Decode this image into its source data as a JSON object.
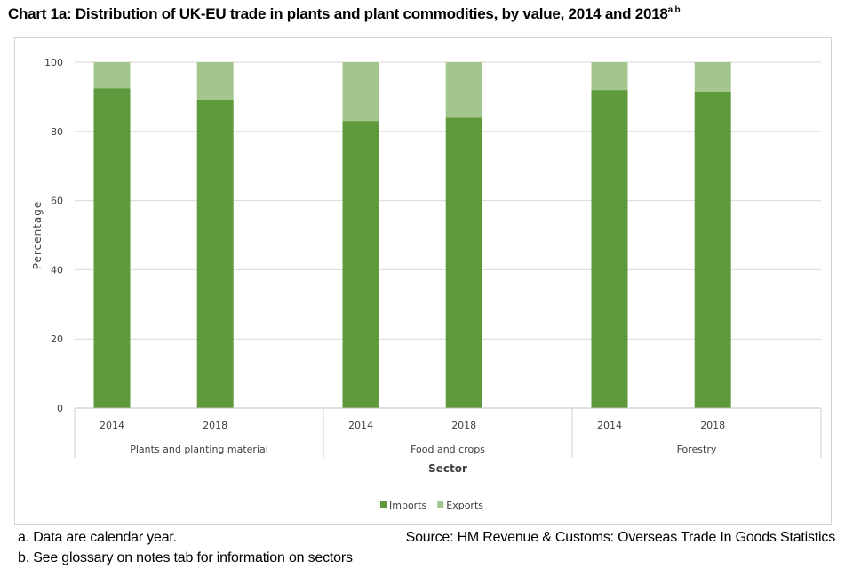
{
  "title": {
    "text": "Chart 1a: Distribution of UK-EU trade in plants and plant commodities, by value, 2014 and 2018",
    "superscript": "a,b"
  },
  "chart_data": {
    "type": "bar",
    "stacked": true,
    "groups": [
      {
        "name": "Plants and planting material",
        "categories": [
          "2014",
          "2018"
        ]
      },
      {
        "name": "Food and crops",
        "categories": [
          "2014",
          "2018"
        ]
      },
      {
        "name": "Forestry",
        "categories": [
          "2014",
          "2018"
        ]
      }
    ],
    "series": [
      {
        "name": "Imports",
        "color": "#5e9a3c",
        "values": [
          92.5,
          89,
          83,
          84,
          92,
          91.5
        ]
      },
      {
        "name": "Exports",
        "color": "#a3c68e",
        "values": [
          7.5,
          11,
          17,
          16,
          8,
          8.5
        ]
      }
    ],
    "xlabel": "Sector",
    "ylabel": "Percentage",
    "ylim": [
      0,
      100
    ],
    "yticks": [
      0,
      20,
      40,
      60,
      80,
      100
    ],
    "gridlines": true,
    "legend_position": "bottom"
  },
  "footnotes": {
    "a": "a. Data are calendar year.",
    "b": "b. See glossary on notes tab for information on sectors"
  },
  "source": "Source: HM Revenue & Customs: Overseas Trade In Goods Statistics"
}
